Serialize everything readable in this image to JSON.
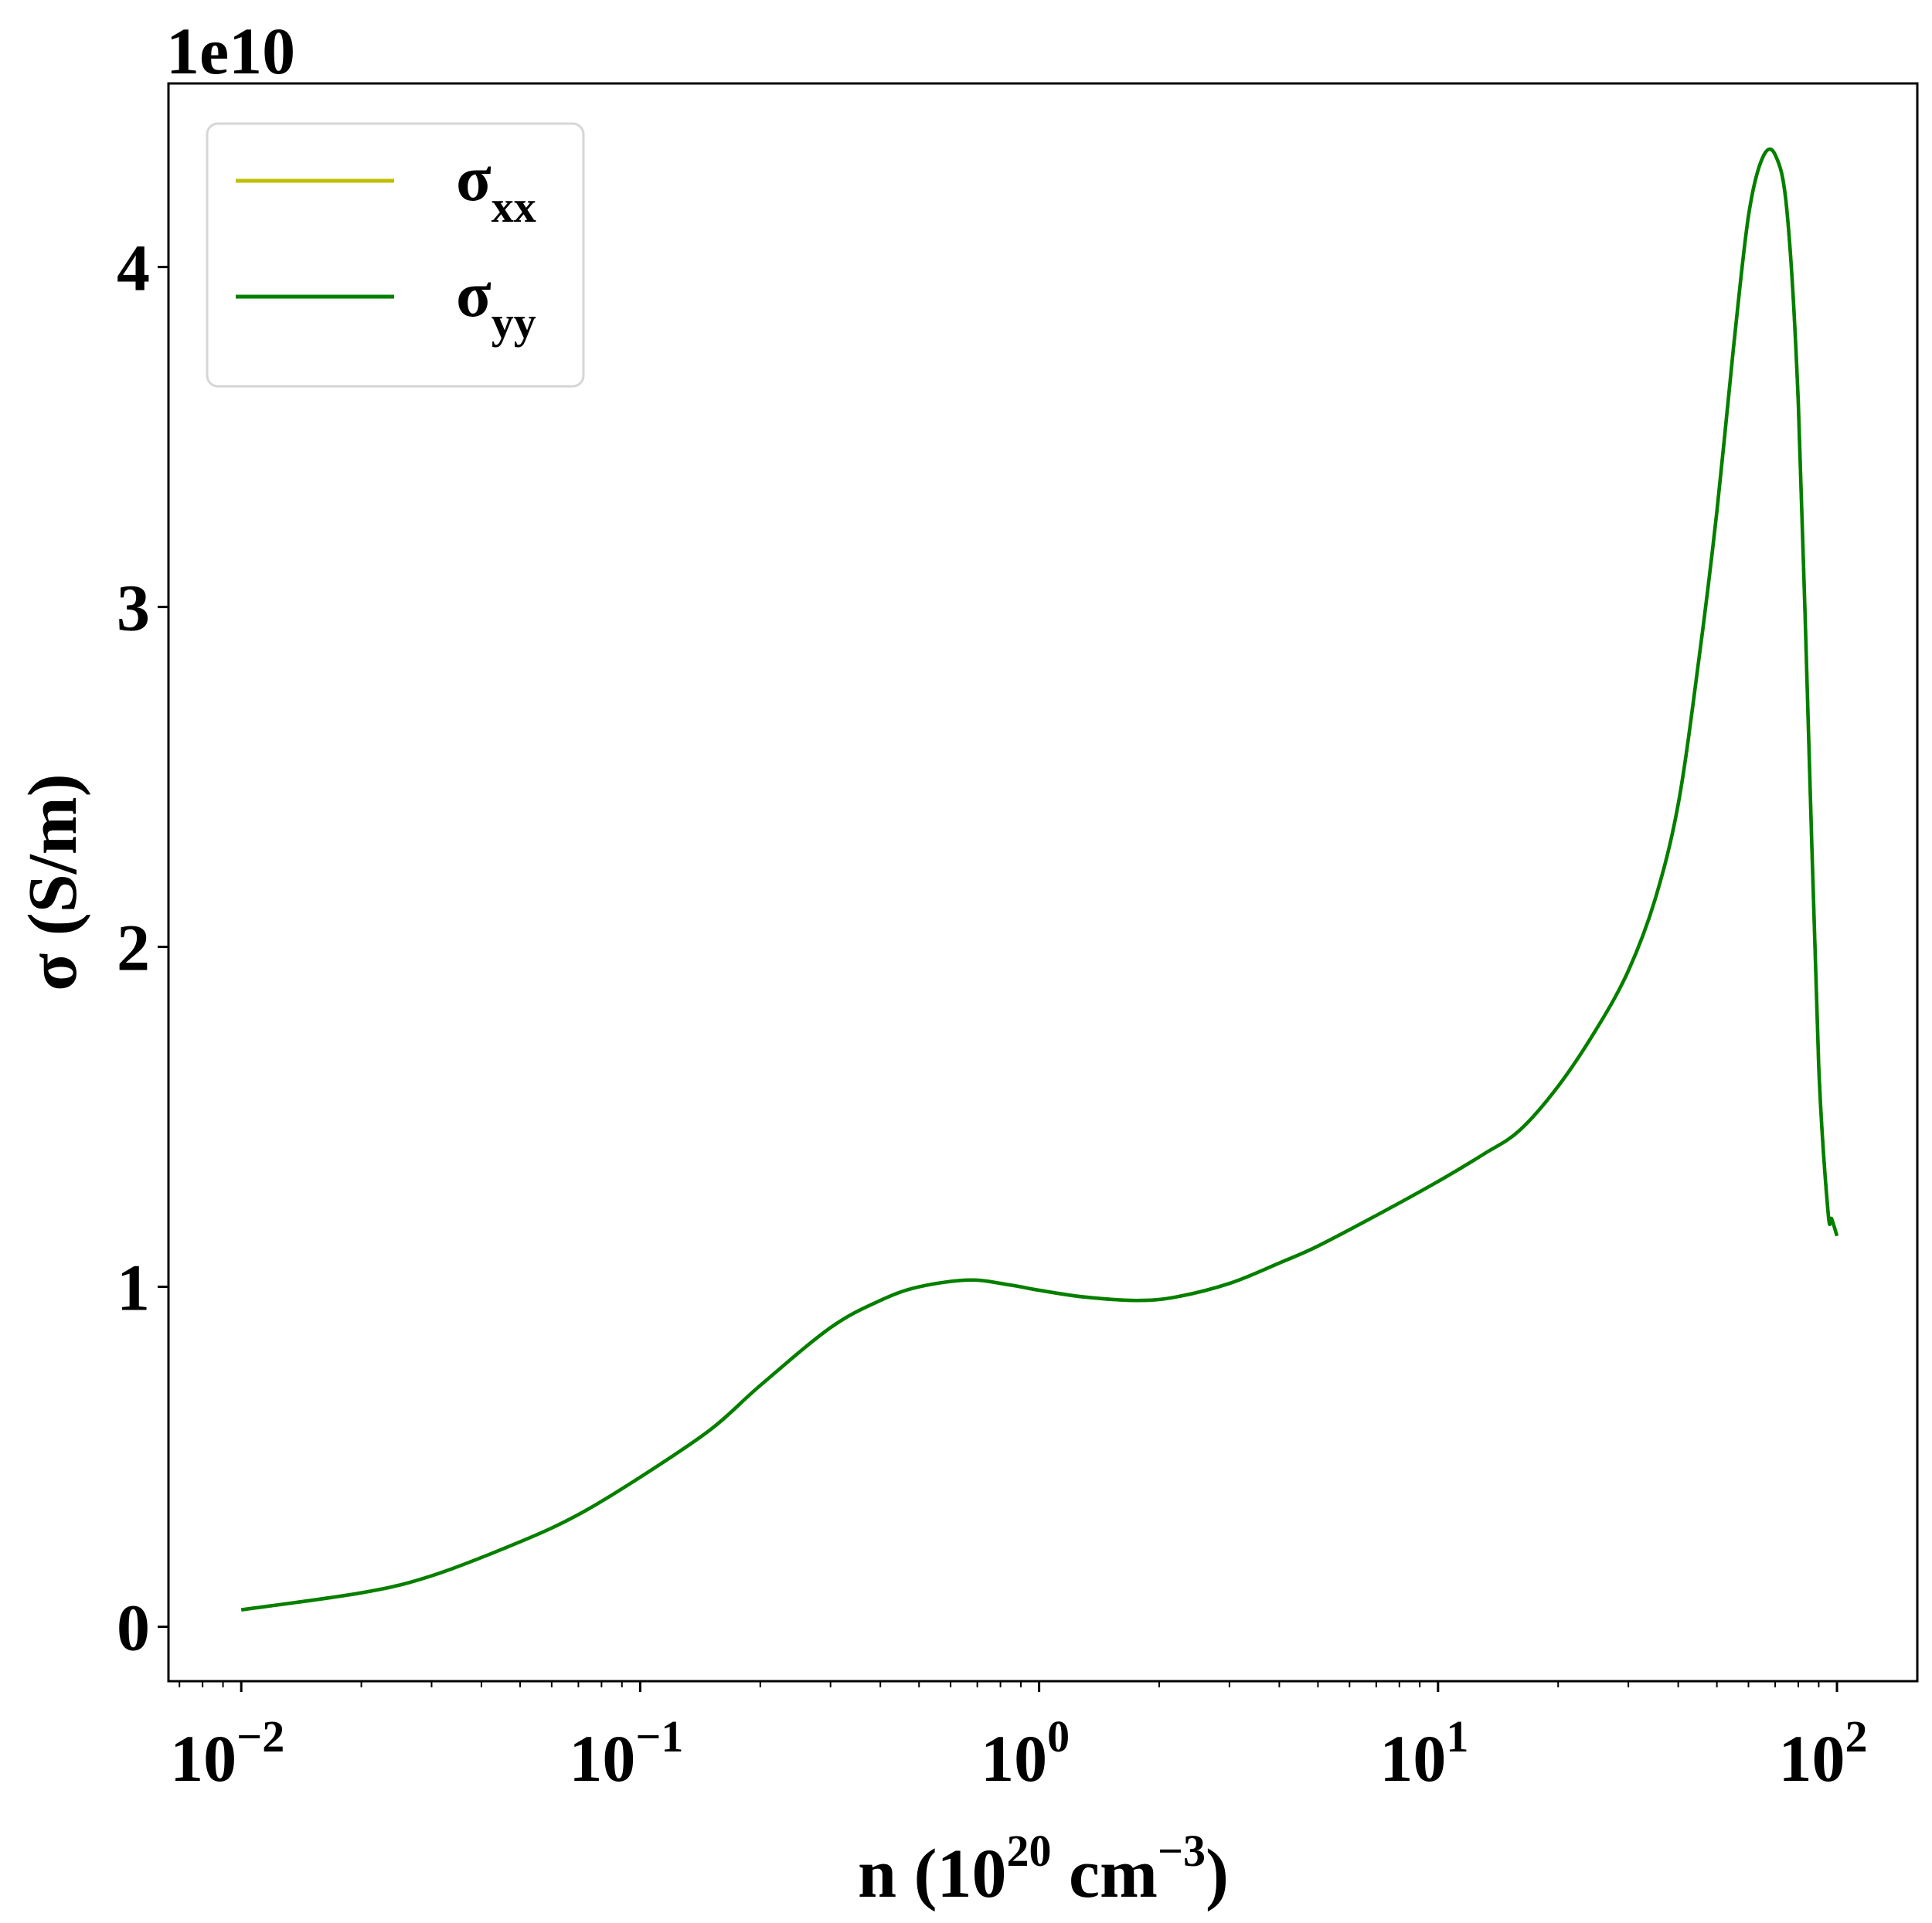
{
  "chart_data": {
    "type": "line",
    "xlabel": {
      "base": "n (10",
      "sup1": "20",
      "mid": " cm",
      "sup2": "−3",
      "end": ")"
    },
    "ylabel": "σ (S/m)",
    "y_offset_text": "1e10",
    "x_scale": "log",
    "xlim": [
      0.00657,
      159
    ],
    "ylim": [
      -1600000000.0,
      45400000000.0
    ],
    "grid": false,
    "legend_position": "top-left",
    "x_ticks": [
      {
        "base": "10",
        "exp": "−2",
        "value": 0.01
      },
      {
        "base": "10",
        "exp": "−1",
        "value": 0.1
      },
      {
        "base": "10",
        "exp": "0",
        "value": 1
      },
      {
        "base": "10",
        "exp": "1",
        "value": 10
      },
      {
        "base": "10",
        "exp": "2",
        "value": 100
      }
    ],
    "y_ticks": [
      {
        "label": "0",
        "value": 0
      },
      {
        "label": "1",
        "value": 10000000000.0
      },
      {
        "label": "2",
        "value": 20000000000.0
      },
      {
        "label": "3",
        "value": 30000000000.0
      },
      {
        "label": "4",
        "value": 40000000000.0
      }
    ],
    "series": [
      {
        "name": {
          "base": "σ",
          "sub": "xx"
        },
        "color": "#bfbf00",
        "x": [
          0.01,
          0.02,
          0.03,
          0.05,
          0.07,
          0.1,
          0.15,
          0.2,
          0.3,
          0.4,
          0.5,
          0.67,
          0.85,
          1.0,
          1.3,
          1.75,
          2.2,
          3.0,
          4.0,
          5.0,
          7.0,
          10.0,
          13.0,
          16.0,
          20.0,
          25.0,
          30.0,
          35.0,
          40.0,
          45.0,
          50.0,
          55.0,
          60.0,
          65.0,
          70.0,
          75.0,
          80.0,
          85.0,
          90.0,
          95.0,
          97.0,
          100.0
        ],
        "y": [
          500000000.0,
          1000000000.0,
          1500000000.0,
          2500000000.0,
          3300000000.0,
          4400000000.0,
          5800000000.0,
          7100000000.0,
          8800000000.0,
          9600000000.0,
          10000000000.0,
          10200000000.0,
          10050000000.0,
          9900000000.0,
          9700000000.0,
          9600000000.0,
          9700000000.0,
          10100000000.0,
          10700000000.0,
          11200000000.0,
          12100000000.0,
          13100000000.0,
          13900000000.0,
          14600000000.0,
          15900000000.0,
          17600000000.0,
          19300000000.0,
          21400000000.0,
          24200000000.0,
          28400000000.0,
          32800000000.0,
          37600000000.0,
          41500000000.0,
          43200000000.0,
          43300000000.0,
          41600000000.0,
          36000000000.0,
          26000000000.0,
          16500000000.0,
          12200000000.0,
          12000000000.0,
          11500000000.0
        ]
      },
      {
        "name": {
          "base": "σ",
          "sub": "yy"
        },
        "color": "#007f00",
        "x": [
          0.01,
          0.02,
          0.03,
          0.05,
          0.07,
          0.1,
          0.15,
          0.2,
          0.3,
          0.4,
          0.5,
          0.67,
          0.85,
          1.0,
          1.3,
          1.75,
          2.2,
          3.0,
          4.0,
          5.0,
          7.0,
          10.0,
          13.0,
          16.0,
          20.0,
          25.0,
          30.0,
          35.0,
          40.0,
          45.0,
          50.0,
          55.0,
          60.0,
          65.0,
          70.0,
          75.0,
          80.0,
          85.0,
          90.0,
          95.0,
          97.0,
          100.0
        ],
        "y": [
          500000000.0,
          1000000000.0,
          1500000000.0,
          2500000000.0,
          3300000000.0,
          4400000000.0,
          5800000000.0,
          7100000000.0,
          8800000000.0,
          9600000000.0,
          10000000000.0,
          10200000000.0,
          10050000000.0,
          9900000000.0,
          9700000000.0,
          9600000000.0,
          9700000000.0,
          10100000000.0,
          10700000000.0,
          11200000000.0,
          12100000000.0,
          13100000000.0,
          13900000000.0,
          14600000000.0,
          15900000000.0,
          17600000000.0,
          19300000000.0,
          21400000000.0,
          24200000000.0,
          28400000000.0,
          32800000000.0,
          37600000000.0,
          41500000000.0,
          43200000000.0,
          43300000000.0,
          41600000000.0,
          36000000000.0,
          26000000000.0,
          16500000000.0,
          12200000000.0,
          12000000000.0,
          11500000000.0
        ]
      }
    ]
  }
}
